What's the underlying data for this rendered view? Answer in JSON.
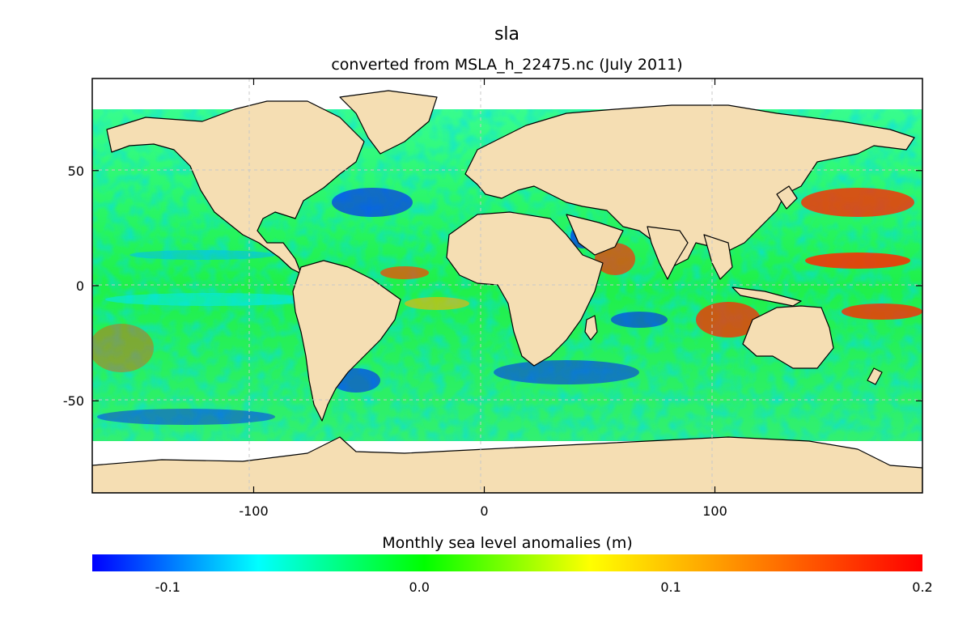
{
  "header": {
    "title": "sla",
    "subtitle": "converted from MSLA_h_22475.nc (July 2011)"
  },
  "map": {
    "projection": "equirectangular",
    "variable": "sla",
    "x_ticks": [
      "-100",
      "0",
      "100"
    ],
    "y_ticks": [
      "50",
      "0",
      "-50"
    ],
    "x_tick_values": [
      -100,
      0,
      100
    ],
    "y_tick_values": [
      50,
      0,
      -50
    ],
    "lon_range": [
      -170,
      190
    ],
    "lat_range": [
      -90,
      90
    ],
    "grid": true,
    "land_color": "#f5deb3",
    "no_data_color": "#ffffff"
  },
  "colorbar": {
    "title": "Monthly sea level anomalies (m)",
    "ticks": [
      "-0.1",
      "0.0",
      "0.1",
      "0.2"
    ],
    "tick_values": [
      -0.1,
      0.0,
      0.1,
      0.2
    ],
    "range": [
      -0.13,
      0.2
    ],
    "colors": [
      "#0000ff",
      "#00ffff",
      "#00ff00",
      "#ffff00",
      "#ff8000",
      "#ff0000"
    ]
  }
}
